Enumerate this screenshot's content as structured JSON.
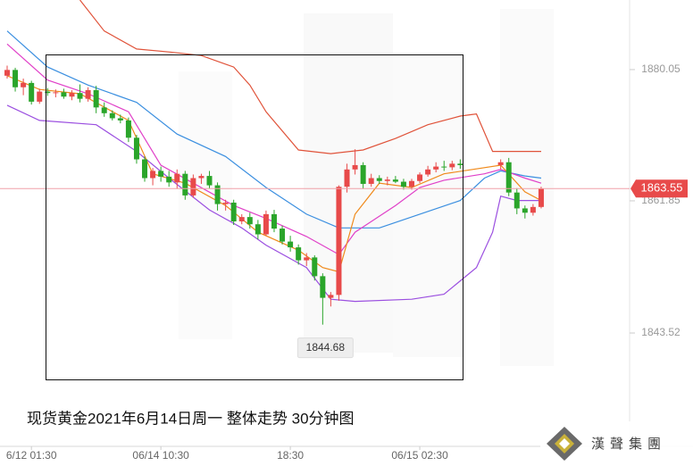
{
  "chart_data": {
    "type": "candlestick",
    "categories": [
      null,
      null,
      null,
      "6/12 01:30",
      null,
      null,
      null,
      null,
      null,
      null,
      null,
      null,
      null,
      null,
      null,
      null,
      null,
      null,
      null,
      "06/14 10:30",
      null,
      null,
      null,
      null,
      null,
      null,
      null,
      null,
      null,
      null,
      null,
      null,
      null,
      null,
      null,
      "18:30",
      null,
      null,
      null,
      null,
      null,
      null,
      null,
      null,
      null,
      null,
      null,
      null,
      null,
      null,
      null,
      "06/15 02:30",
      null,
      null,
      null,
      null,
      null,
      null,
      null,
      null,
      null,
      null,
      null,
      null,
      null,
      null,
      null
    ],
    "open": [
      1879.2,
      1880.0,
      1877.6,
      1878.2,
      1875.6,
      1877.0,
      1876.8,
      1876.9,
      1876.3,
      1876.8,
      1876.0,
      1877.2,
      1874.8,
      1874.0,
      1873.3,
      1873.0,
      1870.6,
      1867.6,
      1865.0,
      1866.0,
      1865.2,
      1864.4,
      1865.6,
      1862.6,
      1865.0,
      1865.3,
      1864.0,
      1861.4,
      1861.6,
      1859.0,
      1859.6,
      1858.6,
      1857.2,
      1860.0,
      1858.0,
      1856.2,
      1855.4,
      1853.6,
      1854.0,
      1851.4,
      1848.4,
      1848.8,
      1863.8,
      1866.2,
      1866.8,
      1864.2,
      1865.0,
      1864.6,
      1864.8,
      1864.5,
      1863.8,
      1864.6,
      1865.5,
      1866.2,
      1866.6,
      1866.5,
      1867.0,
      null,
      null,
      null,
      null,
      1866.8,
      1867.2,
      1863.0,
      1860.8,
      1860.2,
      1861.0
    ],
    "high": [
      1880.6,
      1880.3,
      1878.8,
      1878.5,
      1877.4,
      1877.5,
      1877.3,
      1877.4,
      1877.2,
      1878.0,
      1877.6,
      1877.8,
      1875.5,
      1874.4,
      1873.8,
      1873.4,
      1871.0,
      1868.0,
      1866.4,
      1866.6,
      1866.0,
      1866.2,
      1866.0,
      1865.5,
      1865.6,
      1866.0,
      1864.4,
      1862.0,
      1862.0,
      1860.0,
      1860.2,
      1859.2,
      1860.5,
      1860.6,
      1858.4,
      1857.0,
      1855.8,
      1854.6,
      1854.3,
      1851.8,
      1849.2,
      1864.0,
      1867.0,
      1869.0,
      1867.2,
      1865.6,
      1865.4,
      1865.2,
      1865.3,
      1864.9,
      1864.9,
      1865.8,
      1866.7,
      1867.2,
      1867.4,
      1867.4,
      1867.6,
      null,
      null,
      null,
      null,
      1867.6,
      1867.8,
      1863.6,
      1861.2,
      1861.4,
      1863.8
    ],
    "low": [
      1878.8,
      1877.0,
      1876.5,
      1875.2,
      1875.3,
      1876.4,
      1876.2,
      1876.0,
      1875.8,
      1875.5,
      1875.6,
      1874.0,
      1873.5,
      1873.0,
      1872.6,
      1870.0,
      1867.0,
      1864.5,
      1864.0,
      1864.5,
      1863.8,
      1863.5,
      1862.0,
      1862.3,
      1864.2,
      1863.6,
      1860.5,
      1860.5,
      1858.5,
      1858.6,
      1858.0,
      1856.5,
      1857.0,
      1857.5,
      1855.8,
      1854.8,
      1853.0,
      1852.8,
      1850.8,
      1844.68,
      1847.2,
      1848.0,
      1863.0,
      1865.5,
      1863.5,
      1863.8,
      1864.2,
      1864.0,
      1864.3,
      1863.4,
      1863.4,
      1864.3,
      1865.2,
      1865.8,
      1866.0,
      1866.1,
      1866.3,
      null,
      null,
      null,
      null,
      1866.2,
      1862.5,
      1860.0,
      1859.4,
      1859.8,
      1860.8
    ],
    "close": [
      1880.0,
      1877.6,
      1878.2,
      1875.6,
      1877.0,
      1876.8,
      1876.9,
      1876.3,
      1876.8,
      1876.0,
      1877.2,
      1874.8,
      1874.0,
      1873.3,
      1873.0,
      1870.6,
      1867.6,
      1865.0,
      1866.0,
      1865.2,
      1864.4,
      1865.6,
      1862.6,
      1865.0,
      1865.3,
      1864.0,
      1861.4,
      1861.6,
      1859.0,
      1859.6,
      1858.6,
      1857.2,
      1860.0,
      1858.0,
      1856.2,
      1855.4,
      1853.6,
      1854.0,
      1851.4,
      1848.4,
      1848.8,
      1863.8,
      1866.2,
      1866.8,
      1864.2,
      1865.0,
      1864.6,
      1864.8,
      1864.5,
      1863.8,
      1864.6,
      1865.5,
      1866.2,
      1866.6,
      1866.5,
      1867.0,
      1866.8,
      null,
      null,
      null,
      null,
      1867.2,
      1863.0,
      1860.8,
      1860.2,
      1861.0,
      1863.55
    ],
    "up_color": "#e84a4a",
    "down_color": "#2aa52a",
    "lines": [
      {
        "color": "#e0533a",
        "x": [
          9,
          12,
          16,
          20,
          24,
          28,
          30,
          32,
          36,
          40,
          44,
          48,
          52,
          56,
          58,
          60,
          66
        ],
        "values": [
          1889.7,
          1885.4,
          1882.9,
          1882.5,
          1882.0,
          1880.4,
          1877.9,
          1874.2,
          1868.9,
          1868.4,
          1868.9,
          1870.5,
          1872.4,
          1873.6,
          1873.9,
          1868.7,
          1868.7
        ]
      },
      {
        "color": "#9b4fe0",
        "x": [
          0,
          4,
          11,
          16,
          20,
          25,
          29,
          32,
          37,
          40,
          43,
          50,
          54,
          58,
          60,
          61,
          63,
          66
        ],
        "values": [
          1875.1,
          1873.0,
          1872.4,
          1868.7,
          1865.0,
          1860.6,
          1858.1,
          1855.7,
          1852.6,
          1848.2,
          1847.9,
          1848.2,
          1848.9,
          1852.6,
          1857.5,
          1862.5,
          1861.9,
          1861.9
        ]
      },
      {
        "color": "#3b8fe0",
        "x": [
          0,
          5,
          10,
          16,
          21,
          27,
          32,
          37,
          41,
          46,
          51,
          56,
          59,
          61,
          64,
          66
        ],
        "values": [
          1885.4,
          1880.4,
          1877.9,
          1875.5,
          1871.1,
          1868.0,
          1863.7,
          1860.0,
          1858.1,
          1858.1,
          1860.0,
          1861.9,
          1865.0,
          1866.0,
          1865.3,
          1865.0
        ]
      },
      {
        "color": "#e040c8",
        "x": [
          0,
          5,
          10,
          15,
          19,
          23,
          28,
          32,
          37,
          41,
          43,
          48,
          51,
          54,
          59,
          61,
          64,
          66
        ],
        "values": [
          1883.6,
          1878.6,
          1876.7,
          1874.2,
          1866.8,
          1864.3,
          1861.2,
          1859.4,
          1856.9,
          1854.4,
          1857.5,
          1861.2,
          1863.7,
          1864.7,
          1865.6,
          1866.2,
          1865.0,
          1864.3
        ]
      },
      {
        "color": "#f08a1c",
        "x": [
          0,
          4,
          9,
          15,
          18,
          22,
          27,
          31,
          36,
          39,
          41,
          43,
          46,
          50,
          54,
          61,
          64,
          66
        ],
        "values": [
          1879.2,
          1877.3,
          1876.7,
          1873.0,
          1865.6,
          1864.3,
          1861.2,
          1857.5,
          1855.0,
          1852.6,
          1852.0,
          1860.0,
          1864.3,
          1863.7,
          1865.6,
          1866.8,
          1863.1,
          1861.9
        ]
      }
    ],
    "ylim": [
      1827.8,
      1889.7
    ],
    "yticks": [
      1880.05,
      1861.85,
      1843.52
    ],
    "price_line_color": "#f0a0a8",
    "caption": "现货黄金2021年6月14日周一  整体走势 30分钟图",
    "logo": "漢聲集團"
  }
}
